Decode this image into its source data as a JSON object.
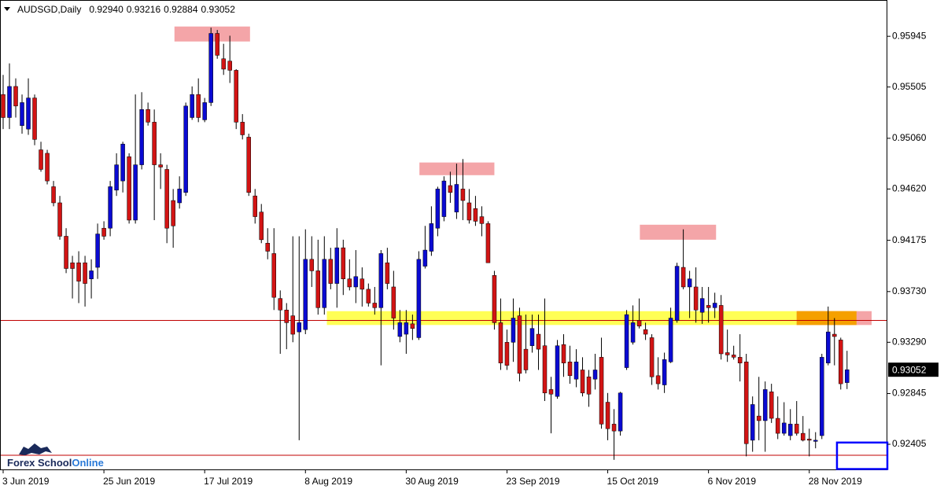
{
  "chart_data": {
    "type": "candlestick",
    "symbol": "AUDSGD,Daily",
    "last": {
      "o": {
        "value": 0.9294,
        "label": "0.92940"
      },
      "h": {
        "value": 0.93216,
        "label": "0.93216"
      },
      "l": {
        "value": 0.92884,
        "label": "0.92884"
      },
      "c": {
        "value": 0.93052,
        "label": "0.93052"
      }
    },
    "candles": [
      {
        "o": 0.9544,
        "h": 0.9561,
        "l": 0.9514,
        "c": 0.9524
      },
      {
        "o": 0.9524,
        "h": 0.9571,
        "l": 0.9514,
        "c": 0.9551
      },
      {
        "o": 0.9551,
        "h": 0.9558,
        "l": 0.9524,
        "c": 0.9534
      },
      {
        "o": 0.9517,
        "h": 0.9544,
        "l": 0.951,
        "c": 0.9537
      },
      {
        "o": 0.9514,
        "h": 0.9558,
        "l": 0.9509,
        "c": 0.9541
      },
      {
        "o": 0.9541,
        "h": 0.9544,
        "l": 0.95,
        "c": 0.9505
      },
      {
        "o": 0.9496,
        "h": 0.9503,
        "l": 0.9477,
        "c": 0.9479
      },
      {
        "o": 0.9493,
        "h": 0.9496,
        "l": 0.9466,
        "c": 0.9469
      },
      {
        "o": 0.9464,
        "h": 0.9469,
        "l": 0.9447,
        "c": 0.945
      },
      {
        "o": 0.945,
        "h": 0.9456,
        "l": 0.9418,
        "c": 0.9421
      },
      {
        "o": 0.9421,
        "h": 0.9428,
        "l": 0.9389,
        "c": 0.9393
      },
      {
        "o": 0.9398,
        "h": 0.9404,
        "l": 0.9367,
        "c": 0.9393
      },
      {
        "o": 0.9398,
        "h": 0.9408,
        "l": 0.9363,
        "c": 0.9382
      },
      {
        "o": 0.9398,
        "h": 0.9404,
        "l": 0.936,
        "c": 0.938
      },
      {
        "o": 0.9384,
        "h": 0.9401,
        "l": 0.9367,
        "c": 0.9391
      },
      {
        "o": 0.9394,
        "h": 0.9432,
        "l": 0.9384,
        "c": 0.9423
      },
      {
        "o": 0.9428,
        "h": 0.9434,
        "l": 0.9418,
        "c": 0.9421
      },
      {
        "o": 0.9428,
        "h": 0.9469,
        "l": 0.9421,
        "c": 0.9464
      },
      {
        "o": 0.9461,
        "h": 0.9493,
        "l": 0.9456,
        "c": 0.9483
      },
      {
        "o": 0.9469,
        "h": 0.9503,
        "l": 0.9459,
        "c": 0.9501
      },
      {
        "o": 0.949,
        "h": 0.9493,
        "l": 0.9432,
        "c": 0.9435
      },
      {
        "o": 0.9435,
        "h": 0.9544,
        "l": 0.9432,
        "c": 0.9483
      },
      {
        "o": 0.9483,
        "h": 0.9546,
        "l": 0.9479,
        "c": 0.9531
      },
      {
        "o": 0.9531,
        "h": 0.9537,
        "l": 0.9517,
        "c": 0.952
      },
      {
        "o": 0.952,
        "h": 0.9531,
        "l": 0.9435,
        "c": 0.9483
      },
      {
        "o": 0.9483,
        "h": 0.9493,
        "l": 0.9462,
        "c": 0.9481
      },
      {
        "o": 0.9479,
        "h": 0.9483,
        "l": 0.9415,
        "c": 0.9428
      },
      {
        "o": 0.9452,
        "h": 0.9462,
        "l": 0.9411,
        "c": 0.943
      },
      {
        "o": 0.945,
        "h": 0.9473,
        "l": 0.9445,
        "c": 0.9462
      },
      {
        "o": 0.9459,
        "h": 0.9537,
        "l": 0.9456,
        "c": 0.9534
      },
      {
        "o": 0.9524,
        "h": 0.9551,
        "l": 0.9522,
        "c": 0.9544
      },
      {
        "o": 0.9544,
        "h": 0.9558,
        "l": 0.952,
        "c": 0.9524
      },
      {
        "o": 0.9522,
        "h": 0.9541,
        "l": 0.952,
        "c": 0.9537
      },
      {
        "o": 0.9537,
        "h": 0.9602,
        "l": 0.9534,
        "c": 0.9597
      },
      {
        "o": 0.9597,
        "h": 0.96,
        "l": 0.9575,
        "c": 0.9578
      },
      {
        "o": 0.9575,
        "h": 0.9588,
        "l": 0.9561,
        "c": 0.9566
      },
      {
        "o": 0.9573,
        "h": 0.9595,
        "l": 0.9554,
        "c": 0.9565
      },
      {
        "o": 0.9565,
        "h": 0.9566,
        "l": 0.9514,
        "c": 0.952
      },
      {
        "o": 0.952,
        "h": 0.9527,
        "l": 0.9505,
        "c": 0.9509
      },
      {
        "o": 0.9507,
        "h": 0.951,
        "l": 0.9456,
        "c": 0.9459
      },
      {
        "o": 0.9456,
        "h": 0.9462,
        "l": 0.9432,
        "c": 0.9438
      },
      {
        "o": 0.9442,
        "h": 0.9449,
        "l": 0.9415,
        "c": 0.9418
      },
      {
        "o": 0.9415,
        "h": 0.9428,
        "l": 0.9401,
        "c": 0.9408
      },
      {
        "o": 0.9406,
        "h": 0.9428,
        "l": 0.9357,
        "c": 0.9368
      },
      {
        "o": 0.9367,
        "h": 0.9374,
        "l": 0.9319,
        "c": 0.9357
      },
      {
        "o": 0.9357,
        "h": 0.9363,
        "l": 0.9323,
        "c": 0.9346
      },
      {
        "o": 0.9352,
        "h": 0.9421,
        "l": 0.9329,
        "c": 0.9336
      },
      {
        "o": 0.9338,
        "h": 0.9421,
        "l": 0.9244,
        "c": 0.9346
      },
      {
        "o": 0.934,
        "h": 0.9427,
        "l": 0.9336,
        "c": 0.9401
      },
      {
        "o": 0.9401,
        "h": 0.9421,
        "l": 0.9377,
        "c": 0.9391
      },
      {
        "o": 0.9391,
        "h": 0.9418,
        "l": 0.9353,
        "c": 0.9359
      },
      {
        "o": 0.9359,
        "h": 0.9421,
        "l": 0.9353,
        "c": 0.9401
      },
      {
        "o": 0.9401,
        "h": 0.9411,
        "l": 0.9375,
        "c": 0.938
      },
      {
        "o": 0.938,
        "h": 0.9428,
        "l": 0.9359,
        "c": 0.9411
      },
      {
        "o": 0.9411,
        "h": 0.9418,
        "l": 0.937,
        "c": 0.9384
      },
      {
        "o": 0.9384,
        "h": 0.9401,
        "l": 0.9374,
        "c": 0.9377
      },
      {
        "o": 0.9377,
        "h": 0.9409,
        "l": 0.9363,
        "c": 0.9386
      },
      {
        "o": 0.9384,
        "h": 0.9394,
        "l": 0.936,
        "c": 0.9375
      },
      {
        "o": 0.9375,
        "h": 0.938,
        "l": 0.936,
        "c": 0.9363
      },
      {
        "o": 0.9363,
        "h": 0.9377,
        "l": 0.9353,
        "c": 0.9359
      },
      {
        "o": 0.9359,
        "h": 0.9409,
        "l": 0.9309,
        "c": 0.9406
      },
      {
        "o": 0.9398,
        "h": 0.9411,
        "l": 0.9375,
        "c": 0.938
      },
      {
        "o": 0.9377,
        "h": 0.9391,
        "l": 0.934,
        "c": 0.935
      },
      {
        "o": 0.9334,
        "h": 0.9357,
        "l": 0.9329,
        "c": 0.9346
      },
      {
        "o": 0.9336,
        "h": 0.9357,
        "l": 0.9319,
        "c": 0.9346
      },
      {
        "o": 0.9345,
        "h": 0.9353,
        "l": 0.9331,
        "c": 0.9341
      },
      {
        "o": 0.9333,
        "h": 0.9408,
        "l": 0.9331,
        "c": 0.9401
      },
      {
        "o": 0.9395,
        "h": 0.943,
        "l": 0.9393,
        "c": 0.9409
      },
      {
        "o": 0.9408,
        "h": 0.9447,
        "l": 0.9404,
        "c": 0.9432
      },
      {
        "o": 0.9428,
        "h": 0.9464,
        "l": 0.9421,
        "c": 0.9462
      },
      {
        "o": 0.9438,
        "h": 0.9473,
        "l": 0.9434,
        "c": 0.9469
      },
      {
        "o": 0.9465,
        "h": 0.9477,
        "l": 0.945,
        "c": 0.9459
      },
      {
        "o": 0.9442,
        "h": 0.9484,
        "l": 0.9436,
        "c": 0.9466
      },
      {
        "o": 0.9462,
        "h": 0.9488,
        "l": 0.9435,
        "c": 0.9452
      },
      {
        "o": 0.945,
        "h": 0.9462,
        "l": 0.9432,
        "c": 0.9435
      },
      {
        "o": 0.9445,
        "h": 0.9456,
        "l": 0.943,
        "c": 0.9434
      },
      {
        "o": 0.9438,
        "h": 0.9447,
        "l": 0.9421,
        "c": 0.9432
      },
      {
        "o": 0.9432,
        "h": 0.9434,
        "l": 0.9398,
        "c": 0.9398
      },
      {
        "o": 0.9387,
        "h": 0.9391,
        "l": 0.934,
        "c": 0.9346
      },
      {
        "o": 0.9346,
        "h": 0.9367,
        "l": 0.9305,
        "c": 0.9311
      },
      {
        "o": 0.9329,
        "h": 0.934,
        "l": 0.9305,
        "c": 0.9309
      },
      {
        "o": 0.9329,
        "h": 0.9367,
        "l": 0.9312,
        "c": 0.935
      },
      {
        "o": 0.9352,
        "h": 0.9359,
        "l": 0.9295,
        "c": 0.9302
      },
      {
        "o": 0.9323,
        "h": 0.9353,
        "l": 0.9302,
        "c": 0.9305
      },
      {
        "o": 0.9326,
        "h": 0.9353,
        "l": 0.932,
        "c": 0.9341
      },
      {
        "o": 0.9336,
        "h": 0.9353,
        "l": 0.9305,
        "c": 0.9323
      },
      {
        "o": 0.9326,
        "h": 0.9367,
        "l": 0.9278,
        "c": 0.9285
      },
      {
        "o": 0.9288,
        "h": 0.9299,
        "l": 0.925,
        "c": 0.9284
      },
      {
        "o": 0.9282,
        "h": 0.9331,
        "l": 0.928,
        "c": 0.9326
      },
      {
        "o": 0.9327,
        "h": 0.9336,
        "l": 0.9299,
        "c": 0.9311
      },
      {
        "o": 0.9312,
        "h": 0.9326,
        "l": 0.9293,
        "c": 0.93
      },
      {
        "o": 0.9297,
        "h": 0.9323,
        "l": 0.929,
        "c": 0.9312
      },
      {
        "o": 0.9305,
        "h": 0.9316,
        "l": 0.9282,
        "c": 0.9285
      },
      {
        "o": 0.9299,
        "h": 0.9305,
        "l": 0.9273,
        "c": 0.9284
      },
      {
        "o": 0.9297,
        "h": 0.9319,
        "l": 0.9288,
        "c": 0.9305
      },
      {
        "o": 0.9316,
        "h": 0.9333,
        "l": 0.9254,
        "c": 0.9258
      },
      {
        "o": 0.9277,
        "h": 0.9285,
        "l": 0.9244,
        "c": 0.9254
      },
      {
        "o": 0.9258,
        "h": 0.9271,
        "l": 0.9227,
        "c": 0.9252
      },
      {
        "o": 0.9252,
        "h": 0.9286,
        "l": 0.9248,
        "c": 0.9285
      },
      {
        "o": 0.9307,
        "h": 0.9357,
        "l": 0.9305,
        "c": 0.9353
      },
      {
        "o": 0.9329,
        "h": 0.9361,
        "l": 0.9327,
        "c": 0.9346
      },
      {
        "o": 0.9348,
        "h": 0.9367,
        "l": 0.9341,
        "c": 0.9343
      },
      {
        "o": 0.934,
        "h": 0.9346,
        "l": 0.9331,
        "c": 0.9336
      },
      {
        "o": 0.9333,
        "h": 0.9336,
        "l": 0.9292,
        "c": 0.9299
      },
      {
        "o": 0.93,
        "h": 0.9316,
        "l": 0.9288,
        "c": 0.9293
      },
      {
        "o": 0.9292,
        "h": 0.932,
        "l": 0.9285,
        "c": 0.9314
      },
      {
        "o": 0.9312,
        "h": 0.9359,
        "l": 0.9311,
        "c": 0.935
      },
      {
        "o": 0.9348,
        "h": 0.9398,
        "l": 0.9346,
        "c": 0.9395
      },
      {
        "o": 0.9394,
        "h": 0.9427,
        "l": 0.9375,
        "c": 0.9377
      },
      {
        "o": 0.9377,
        "h": 0.9391,
        "l": 0.935,
        "c": 0.9384
      },
      {
        "o": 0.9377,
        "h": 0.9394,
        "l": 0.9346,
        "c": 0.9357
      },
      {
        "o": 0.9355,
        "h": 0.9377,
        "l": 0.9345,
        "c": 0.9367
      },
      {
        "o": 0.9361,
        "h": 0.9377,
        "l": 0.9346,
        "c": 0.9359
      },
      {
        "o": 0.9359,
        "h": 0.9372,
        "l": 0.935,
        "c": 0.9363
      },
      {
        "o": 0.9361,
        "h": 0.937,
        "l": 0.9314,
        "c": 0.9319
      },
      {
        "o": 0.932,
        "h": 0.934,
        "l": 0.9312,
        "c": 0.9318
      },
      {
        "o": 0.9318,
        "h": 0.9326,
        "l": 0.9314,
        "c": 0.9316
      },
      {
        "o": 0.9316,
        "h": 0.9336,
        "l": 0.9295,
        "c": 0.9311
      },
      {
        "o": 0.9312,
        "h": 0.9319,
        "l": 0.923,
        "c": 0.9241
      },
      {
        "o": 0.9244,
        "h": 0.9282,
        "l": 0.9234,
        "c": 0.9275
      },
      {
        "o": 0.9265,
        "h": 0.9299,
        "l": 0.9244,
        "c": 0.9261
      },
      {
        "o": 0.9261,
        "h": 0.9295,
        "l": 0.9234,
        "c": 0.9288
      },
      {
        "o": 0.9286,
        "h": 0.9293,
        "l": 0.9259,
        "c": 0.9263
      },
      {
        "o": 0.9263,
        "h": 0.9282,
        "l": 0.9245,
        "c": 0.925
      },
      {
        "o": 0.925,
        "h": 0.9277,
        "l": 0.9248,
        "c": 0.9259
      },
      {
        "o": 0.9248,
        "h": 0.9271,
        "l": 0.9244,
        "c": 0.9258
      },
      {
        "o": 0.9258,
        "h": 0.9278,
        "l": 0.9248,
        "c": 0.925
      },
      {
        "o": 0.925,
        "h": 0.9265,
        "l": 0.9243,
        "c": 0.9244
      },
      {
        "o": 0.9245,
        "h": 0.9254,
        "l": 0.923,
        "c": 0.9244
      },
      {
        "o": 0.9243,
        "h": 0.9251,
        "l": 0.9237,
        "c": 0.9244
      },
      {
        "o": 0.9248,
        "h": 0.9319,
        "l": 0.9245,
        "c": 0.9316
      },
      {
        "o": 0.9311,
        "h": 0.936,
        "l": 0.9309,
        "c": 0.9338
      },
      {
        "o": 0.9336,
        "h": 0.935,
        "l": 0.9309,
        "c": 0.9334
      },
      {
        "o": 0.9331,
        "h": 0.9333,
        "l": 0.9288,
        "c": 0.9293
      }
    ],
    "up_color": "#0a0ad2",
    "down_color": "#d21414",
    "wick_color": "#000000",
    "xlim": [
      -0.5,
      140.4
    ],
    "ylim": [
      0.9218,
      0.9626
    ],
    "xticks": [
      {
        "value": 0,
        "label": "3 Jun 2019"
      },
      {
        "value": 16,
        "label": "25 Jun 2019"
      },
      {
        "value": 32,
        "label": "17 Jul 2019"
      },
      {
        "value": 48,
        "label": "8 Aug 2019"
      },
      {
        "value": 64,
        "label": "30 Aug 2019"
      },
      {
        "value": 80,
        "label": "23 Sep 2019"
      },
      {
        "value": 96,
        "label": "15 Oct 2019"
      },
      {
        "value": 112,
        "label": "6 Nov 2019"
      },
      {
        "value": 128,
        "label": "28 Nov 2019"
      }
    ],
    "yticks": [
      {
        "value": 0.95945,
        "label": "0.95945"
      },
      {
        "value": 0.95505,
        "label": "0.95505"
      },
      {
        "value": 0.9506,
        "label": "0.95060"
      },
      {
        "value": 0.9462,
        "label": "0.94620"
      },
      {
        "value": 0.94175,
        "label": "0.94175"
      },
      {
        "value": 0.9373,
        "label": "0.93730"
      },
      {
        "value": 0.9329,
        "label": "0.93290"
      },
      {
        "value": 0.92845,
        "label": "0.92845"
      },
      {
        "value": 0.92405,
        "label": "0.92405"
      }
    ],
    "grid": false,
    "hlines": [
      {
        "value": 0.9348,
        "color": "#c00000"
      },
      {
        "value": 0.9231,
        "color": "#c00000"
      }
    ],
    "zones": [
      {
        "x": [
          51.4,
          135.8
        ],
        "y": [
          0.9344,
          0.9356
        ],
        "color": "#ffff55",
        "style": "fill"
      },
      {
        "x": [
          27.2,
          39.2
        ],
        "y": [
          0.959,
          0.9603
        ],
        "color": "#f4a5a8",
        "style": "fill"
      },
      {
        "x": [
          66.1,
          78
        ],
        "y": [
          0.9474,
          0.9485
        ],
        "color": "#f4a5a8",
        "style": "fill"
      },
      {
        "x": [
          101.1,
          113.2
        ],
        "y": [
          0.9418,
          0.9431
        ],
        "color": "#f4a5a8",
        "style": "fill"
      },
      {
        "x": [
          126,
          137.9
        ],
        "y": [
          0.9344,
          0.9356
        ],
        "color": "#f4a5a8",
        "style": "fill"
      },
      {
        "x": [
          126,
          135.5
        ],
        "y": [
          0.9344,
          0.9356
        ],
        "color": "#f5a000",
        "style": "fill"
      },
      {
        "x": [
          132.4,
          140.4
        ],
        "y": [
          0.9219,
          0.9242
        ],
        "color": "#0000ff",
        "style": "outline"
      }
    ],
    "watermark": {
      "primary": "Forex School",
      "secondary": "Online"
    }
  }
}
